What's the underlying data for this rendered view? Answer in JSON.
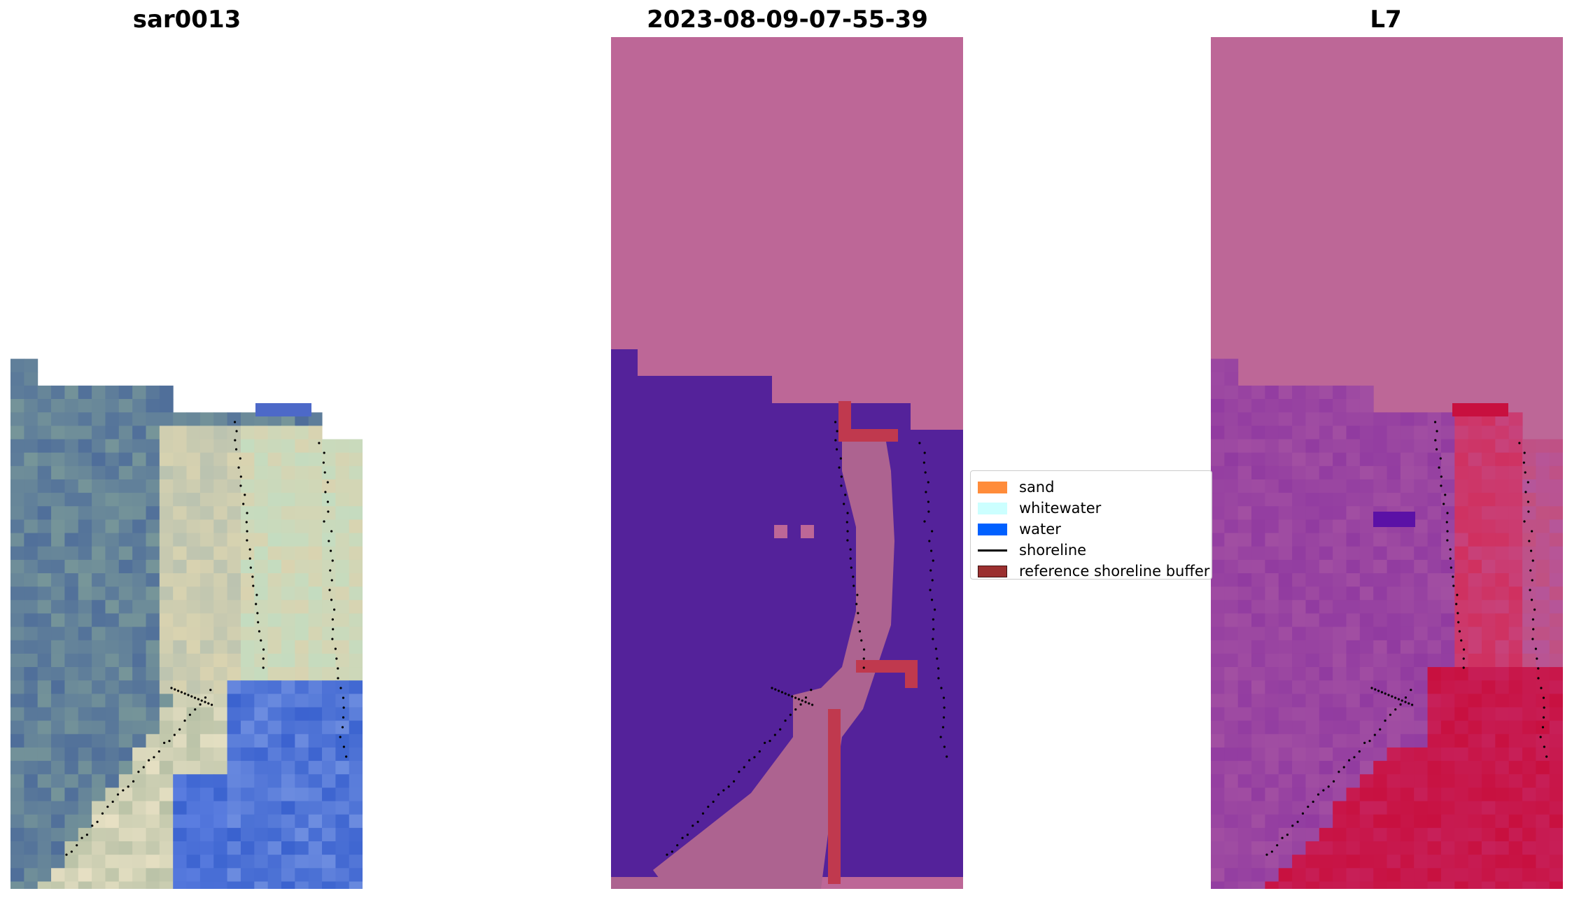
{
  "panels": [
    {
      "title": "sar0013",
      "kind": "rgb"
    },
    {
      "title": "2023-08-09-07-55-39",
      "kind": "classification"
    },
    {
      "title": "L7",
      "kind": "index"
    }
  ],
  "legend": {
    "items": [
      {
        "label": "sand",
        "color": "#ff8c3a",
        "type": "patch"
      },
      {
        "label": "whitewater",
        "color": "#ccffff",
        "type": "patch"
      },
      {
        "label": "water",
        "color": "#0060ff",
        "type": "patch"
      },
      {
        "label": "shoreline",
        "color": "#000000",
        "type": "line"
      },
      {
        "label": "reference shoreline buffer",
        "color": "#9b3030",
        "type": "patch",
        "edge": "#3d1010"
      }
    ]
  },
  "colors": {
    "nodata_pink": "#bd6797",
    "class_water": "#54229a",
    "buffer_red": "#c0394e",
    "sand_mauve": "#ad6390",
    "rgb_water": "#4f6e9a",
    "rgb_sand": "#d9d3b0",
    "rgb_deep": "#3a62cf",
    "index_purple": "#a24fa2",
    "index_red": "#c8103f"
  }
}
